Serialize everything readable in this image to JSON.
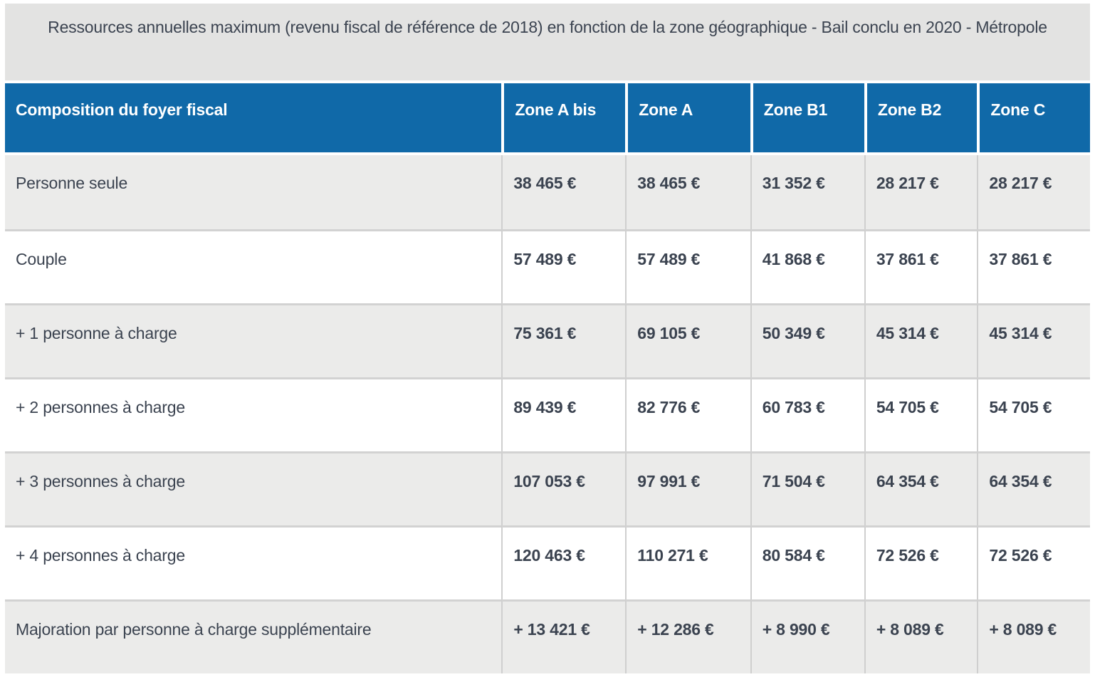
{
  "title": "Ressources annuelles maximum (revenu fiscal de référence de 2018) en fonction de la zone géographique - Bail conclu en 2020 - Métropole",
  "colors": {
    "header_bg": "#1069a8",
    "header_text": "#ffffff",
    "title_bg": "#e3e3e2",
    "row_alt_bg": "#ebebea",
    "row_bg": "#ffffff",
    "body_text": "#3b4350",
    "grid_line": "#d2d2d2"
  },
  "table": {
    "columns": [
      "Composition du foyer fiscal",
      "Zone A bis",
      "Zone A",
      "Zone B1",
      "Zone B2",
      "Zone C"
    ],
    "rows": [
      {
        "label": "Personne seule",
        "values": [
          "38 465 €",
          "38 465 €",
          "31 352 €",
          "28 217 €",
          "28 217 €"
        ]
      },
      {
        "label": "Couple",
        "values": [
          "57 489 €",
          "57 489 €",
          "41 868 €",
          "37 861 €",
          "37 861 €"
        ]
      },
      {
        "label": "+ 1 personne à charge",
        "values": [
          "75 361 €",
          "69 105 €",
          "50 349 €",
          "45 314 €",
          "45 314 €"
        ]
      },
      {
        "label": "+ 2 personnes à charge",
        "values": [
          "89 439 €",
          "82 776 €",
          "60 783 €",
          "54 705 €",
          "54 705 €"
        ]
      },
      {
        "label": "+ 3 personnes à charge",
        "values": [
          "107 053 €",
          "97 991 €",
          "71 504 €",
          "64 354 €",
          "64 354 €"
        ]
      },
      {
        "label": "+ 4 personnes à charge",
        "values": [
          "120 463 €",
          "110 271 €",
          "80 584 €",
          "72 526 €",
          "72 526 €"
        ]
      },
      {
        "label": "Majoration par personne à charge supplémentaire",
        "values": [
          "+ 13 421 €",
          "+ 12 286 €",
          "+ 8 990 €",
          "+ 8 089 €",
          "+ 8 089 €"
        ]
      }
    ]
  }
}
